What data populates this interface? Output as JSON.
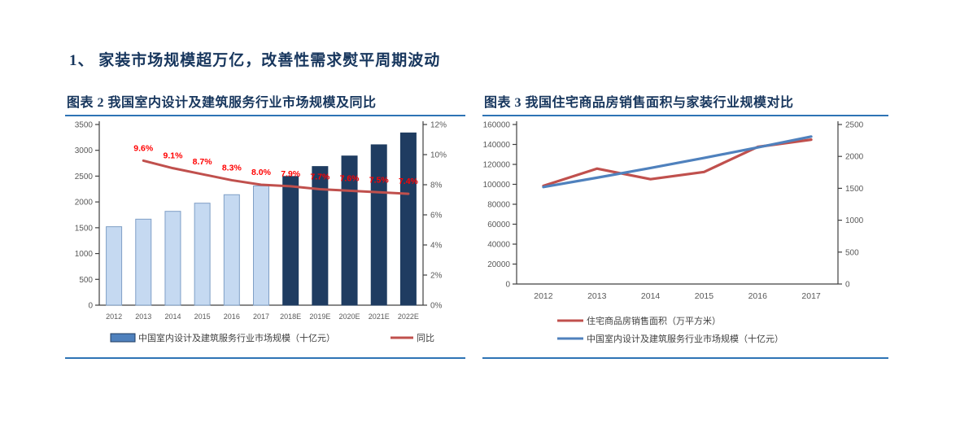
{
  "page": {
    "heading": "1、 家装市场规模超万亿，改善性需求熨平周期波动"
  },
  "figures": [
    {
      "title": "图表 2  我国室内设计及建筑服务行业市场规模及同比"
    },
    {
      "title": "图表 3  我国住宅商品房销售面积与家装行业规模对比"
    }
  ],
  "colors": {
    "heading_navy": "#17365d",
    "rule_blue": "#2e74b5",
    "bar_light_fill": "#c5d9f1",
    "bar_light_border": "#7f9fc6",
    "bar_dark_fill": "#1f3c61",
    "line_red": "#c0504d",
    "point_label_red": "#ff0000",
    "line_blue": "#4f81bd",
    "axis_gray": "#404040",
    "tick_label_gray": "#595959",
    "legend_text": "#404040"
  },
  "chart_data": [
    {
      "type": "bar",
      "subtype": "bar+line dual-axis combo",
      "title": "我国室内设计及建筑服务行业市场规模及同比",
      "categories": [
        "2012",
        "2013",
        "2014",
        "2015",
        "2016",
        "2017",
        "2018E",
        "2019E",
        "2020E",
        "2021E",
        "2022E"
      ],
      "series": [
        {
          "name": "中国室内设计及建筑服务行业市场规模（十亿元）",
          "type": "bar",
          "axis": "left",
          "values": [
            1520,
            1666,
            1818,
            1976,
            2140,
            2311,
            2494,
            2686,
            2890,
            3107,
            3337
          ],
          "dark_from_index": 6
        },
        {
          "name": "同比",
          "type": "line",
          "axis": "right",
          "values": [
            null,
            9.6,
            9.1,
            8.7,
            8.3,
            8.0,
            7.9,
            7.7,
            7.6,
            7.5,
            7.4
          ],
          "point_labels": [
            "",
            "9.6%",
            "9.1%",
            "8.7%",
            "8.3%",
            "8.0%",
            "7.9%",
            "7.7%",
            "7.6%",
            "7.5%",
            "7.4%"
          ]
        }
      ],
      "left_axis": {
        "min": 0,
        "max": 3500,
        "tick_labels": [
          "0",
          "500",
          "1000",
          "1500",
          "2000",
          "2500",
          "3000",
          "3500"
        ]
      },
      "right_axis": {
        "min": 0,
        "max": 12,
        "tick_labels": [
          "0%",
          "2%",
          "4%",
          "6%",
          "8%",
          "10%",
          "12%"
        ]
      },
      "legend_position": "bottom",
      "grid": false
    },
    {
      "type": "line",
      "subtype": "two-line dual-axis",
      "title": "我国住宅商品房销售面积与家装行业规模对比",
      "categories": [
        "2012",
        "2013",
        "2014",
        "2015",
        "2016",
        "2017"
      ],
      "series": [
        {
          "name": "住宅商品房销售面积（万平方米）",
          "type": "line",
          "axis": "left",
          "values": [
            98468,
            115723,
            105182,
            112406,
            137540,
            144789
          ]
        },
        {
          "name": "中国室内设计及建筑服务行业市场规模（十亿元）",
          "type": "line",
          "axis": "right",
          "values": [
            1520,
            1666,
            1818,
            1976,
            2140,
            2311
          ]
        }
      ],
      "left_axis": {
        "min": 0,
        "max": 160000,
        "tick_labels": [
          "0",
          "20000",
          "40000",
          "60000",
          "80000",
          "100000",
          "120000",
          "140000",
          "160000"
        ]
      },
      "right_axis": {
        "min": 0,
        "max": 2500,
        "tick_labels": [
          "0",
          "500",
          "1000",
          "1500",
          "2000",
          "2500"
        ]
      },
      "legend_position": "bottom",
      "grid": false
    }
  ]
}
